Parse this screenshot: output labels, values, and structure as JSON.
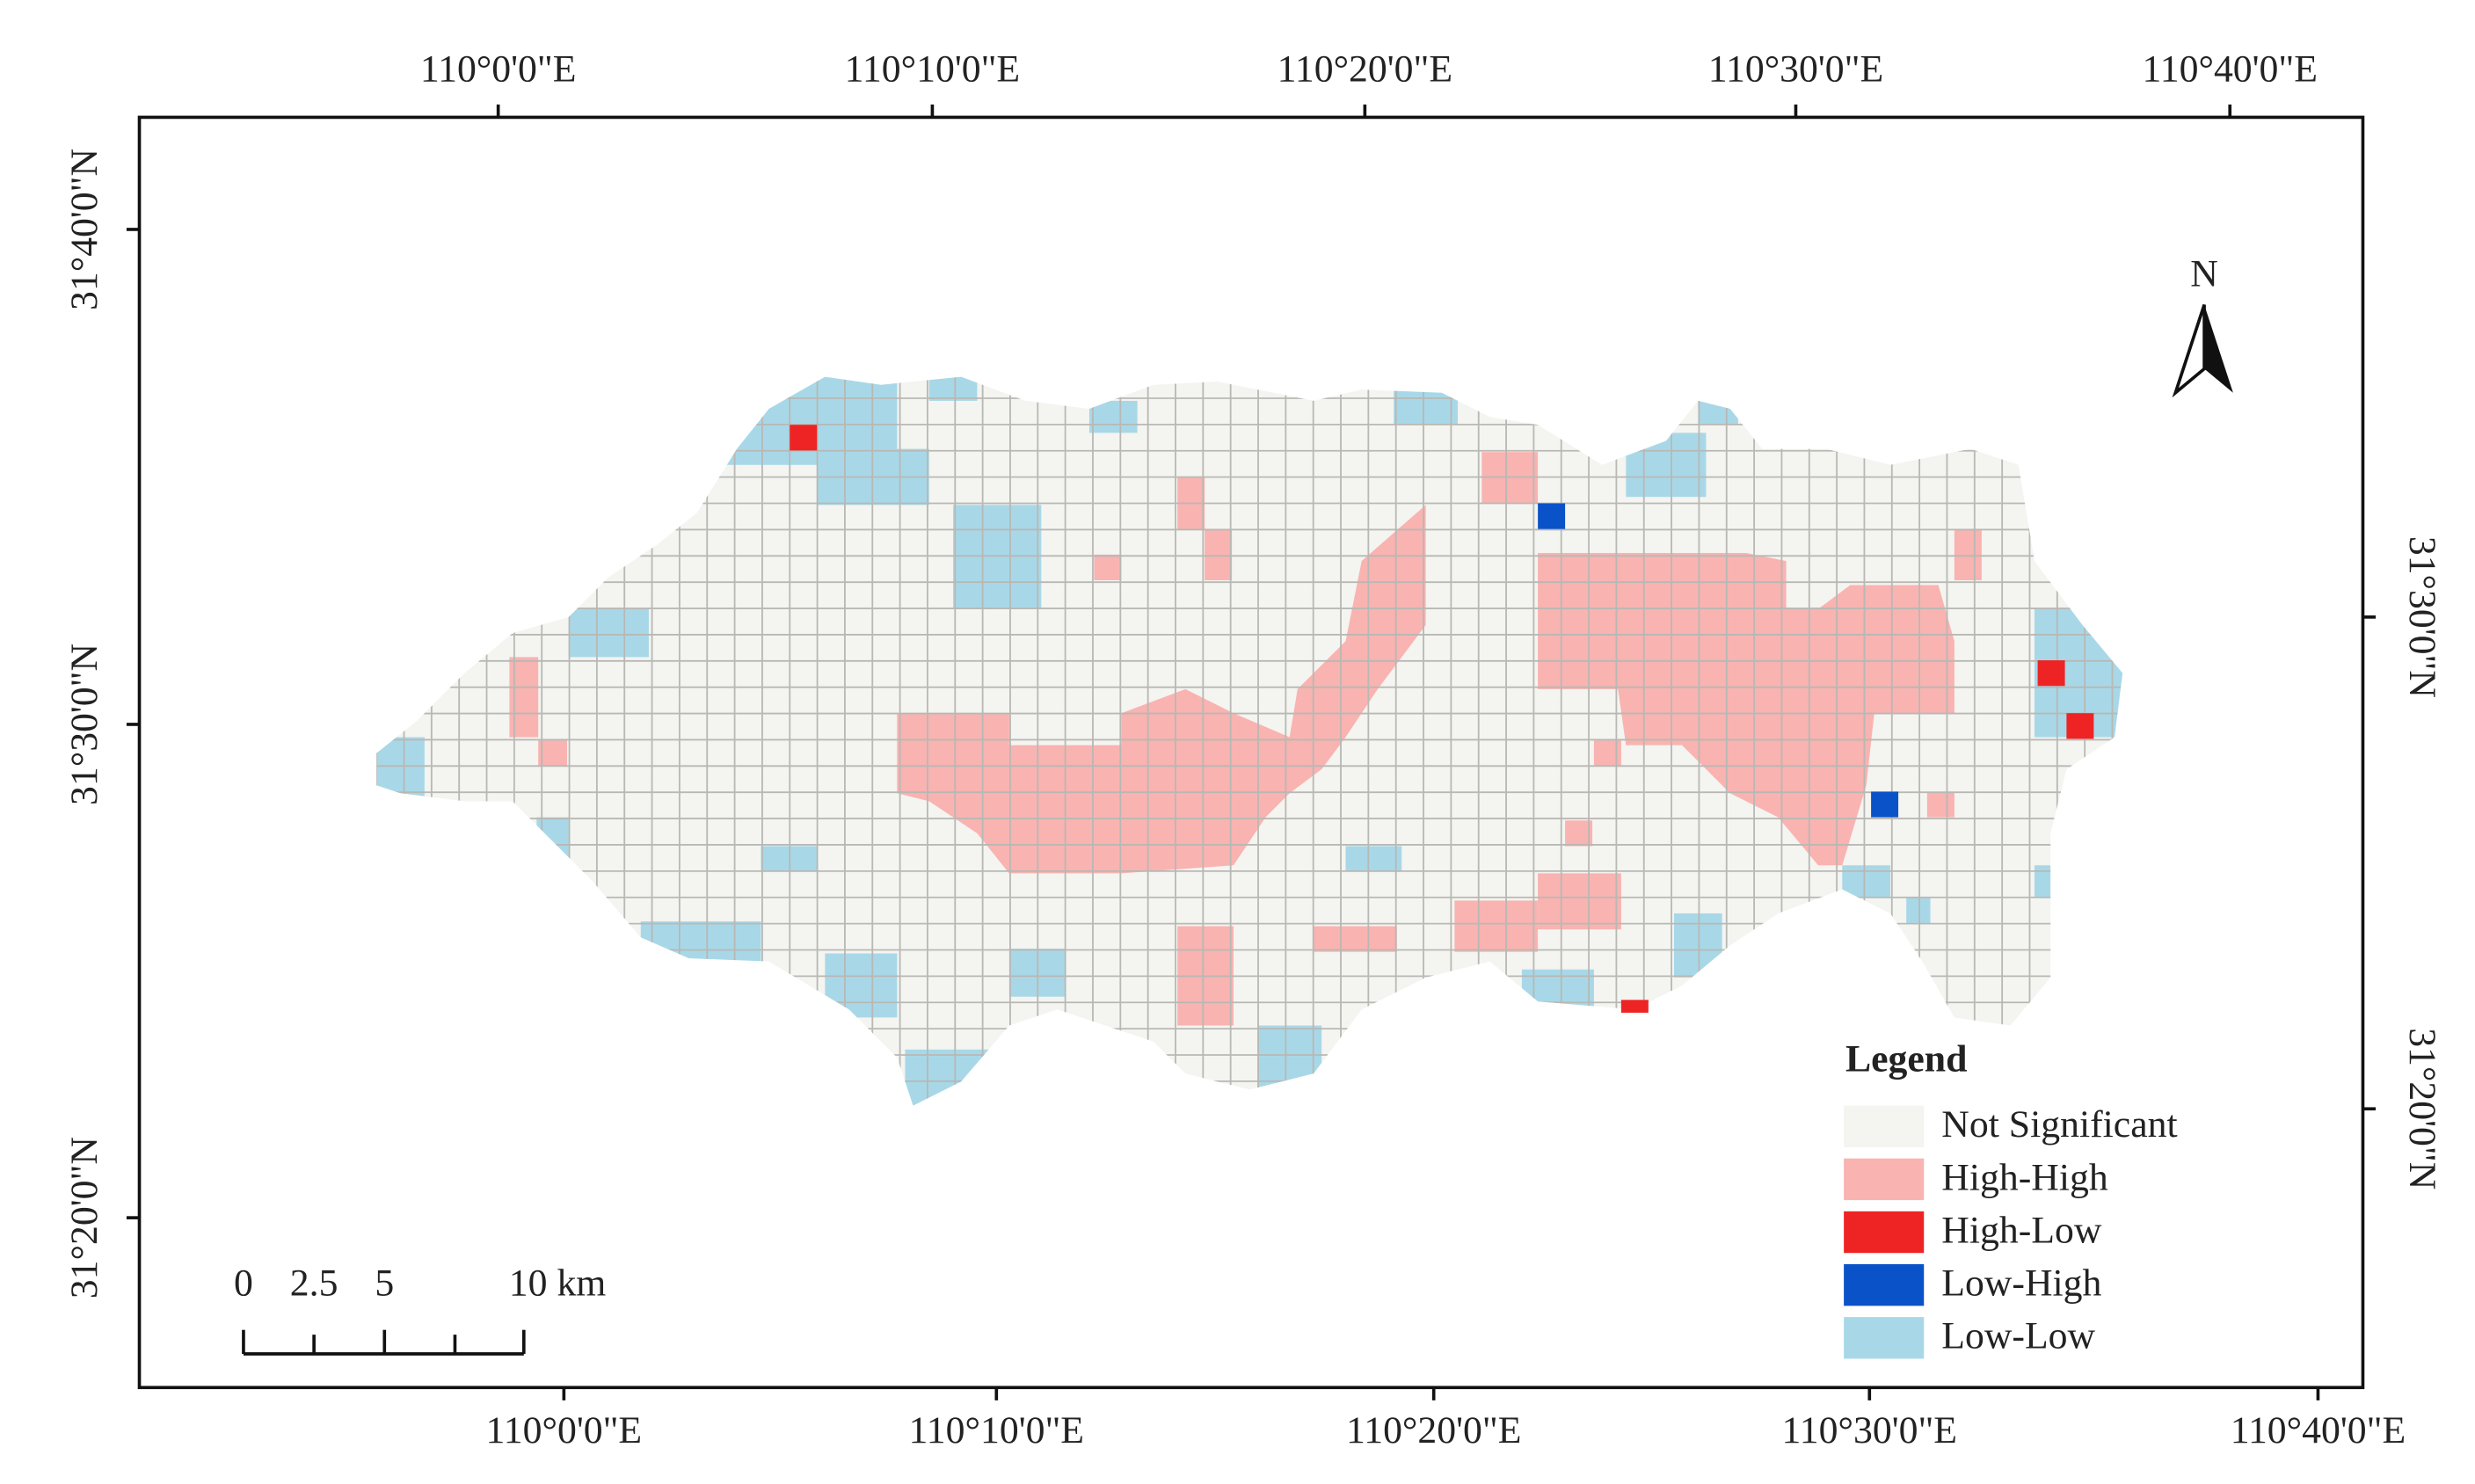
{
  "map": {
    "top_labels": [
      "110°0'0\"E",
      "110°10'0\"E",
      "110°20'0\"E",
      "110°30'0\"E",
      "110°40'0\"E"
    ],
    "bottom_labels": [
      "110°0'0\"E",
      "110°10'0\"E",
      "110°20'0\"E",
      "110°30'0\"E",
      "110°40'0\"E"
    ],
    "left_labels": [
      "31°40'0\"N",
      "31°30'0\"N",
      "31°20'0\"N"
    ],
    "right_labels": [
      "31°30'0\"N",
      "31°20'0\"N"
    ],
    "north": "N",
    "scale_labels": [
      "0",
      "2.5",
      "5",
      "10 km"
    ],
    "legend": {
      "title": "Legend",
      "items": [
        {
          "label": "Not Significant",
          "color": "#f4f4f0"
        },
        {
          "label": "High-High",
          "color": "#f9b3b1"
        },
        {
          "label": "High-Low",
          "color": "#ee2424"
        },
        {
          "label": "Low-High",
          "color": "#0a52c8"
        },
        {
          "label": "Low-Low",
          "color": "#a8d8e8"
        }
      ]
    }
  }
}
